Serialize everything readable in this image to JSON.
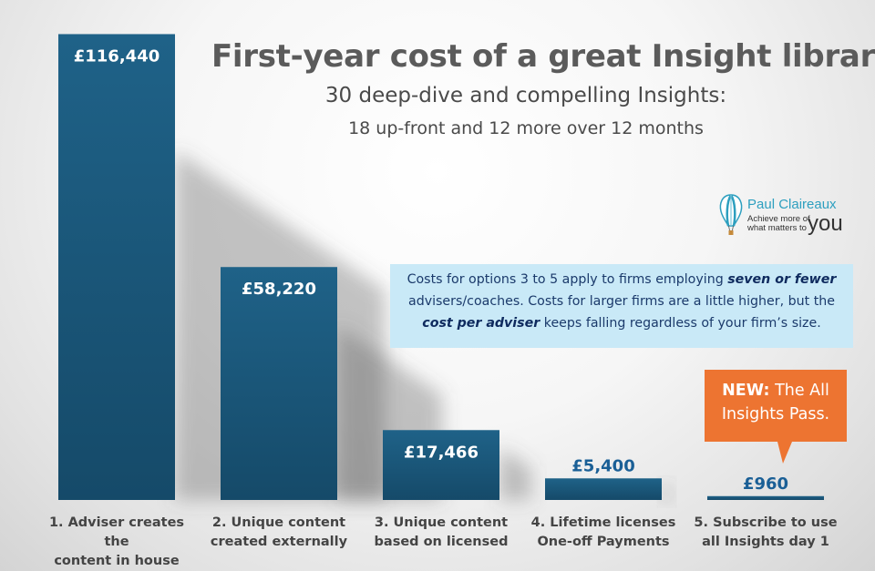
{
  "title": "First-year cost of a great Insight library",
  "subtitle_line1": "30 deep-dive and compelling Insights:",
  "subtitle_line2": "18 up-front and 12 more over 12 months",
  "logo": {
    "name": "Paul Claireaux",
    "tagline": "Achieve more of what matters to",
    "tagline_you": "you"
  },
  "note": {
    "part1": "Costs for options 3 to 5 apply to firms employing ",
    "emph1": "seven or fewer",
    "part2": " advisers/coaches. Costs for larger firms are a little higher, but the ",
    "emph2": "cost per adviser",
    "part3": " keeps falling regardless of your firm’s size."
  },
  "callout": {
    "bold": "NEW:",
    "text": " The All Insights Pass."
  },
  "colors": {
    "bar": "#1a5678",
    "bar_dark": "#123f5a",
    "label_inside": "#ffffff",
    "label_outside": "#1a5f96",
    "callout": "#ed7431",
    "note_bg": "#c9e9f7"
  },
  "chart_data": {
    "type": "bar",
    "categories": [
      "1. Adviser creates the content in house",
      "2. Unique content created externally",
      "3. Unique content based on licensed",
      "4. Lifetime licenses One-off Payments",
      "5. Subscribe to use all Insights day 1"
    ],
    "category_lines": [
      [
        "1. Adviser creates the",
        "content in house"
      ],
      [
        "2. Unique content",
        "created externally"
      ],
      [
        "3. Unique content",
        "based on licensed"
      ],
      [
        "4. Lifetime licenses",
        "One-off Payments"
      ],
      [
        "5. Subscribe to use",
        "all Insights day 1"
      ]
    ],
    "values": [
      116440,
      58220,
      17466,
      5400,
      960
    ],
    "value_labels": [
      "£116,440",
      "£58,220",
      "£17,466",
      "£5,400",
      "£960"
    ],
    "ylim": [
      0,
      117000
    ],
    "grid": false,
    "xlabel": "",
    "ylabel": ""
  }
}
